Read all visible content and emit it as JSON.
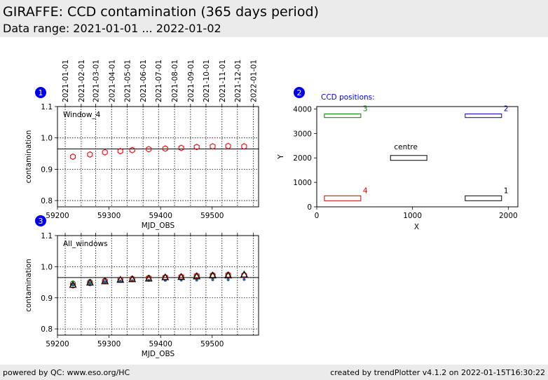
{
  "header": {
    "title": "GIRAFFE: CCD contamination (365 days period)",
    "subtitle": "Data range: 2021-01-01 ... 2022-01-02"
  },
  "footer": {
    "left": "powered by QC: www.eso.org/HC",
    "right": "created by trendPlotter v4.1.2 on 2022-01-15T16:30:22"
  },
  "date_ticks": [
    {
      "label": "2021-01-01",
      "mjd": 59215
    },
    {
      "label": "2021-02-01",
      "mjd": 59246
    },
    {
      "label": "2021-03-01",
      "mjd": 59274
    },
    {
      "label": "2021-04-01",
      "mjd": 59305
    },
    {
      "label": "2021-05-01",
      "mjd": 59335
    },
    {
      "label": "2021-06-01",
      "mjd": 59366
    },
    {
      "label": "2021-07-01",
      "mjd": 59396
    },
    {
      "label": "2021-08-01",
      "mjd": 59427
    },
    {
      "label": "2021-09-01",
      "mjd": 59458
    },
    {
      "label": "2021-10-01",
      "mjd": 59488
    },
    {
      "label": "2021-11-01",
      "mjd": 59519
    },
    {
      "label": "2021-12-01",
      "mjd": 59549
    },
    {
      "label": "2022-01-01",
      "mjd": 59580
    }
  ],
  "chart_data": [
    {
      "id": "1",
      "type": "scatter",
      "label": "Window_4",
      "xlabel": "MJD_OBS",
      "ylabel": "contamination",
      "xlim": [
        59200,
        59590
      ],
      "ylim": [
        0.78,
        1.1
      ],
      "xticks": [
        59200,
        59300,
        59400,
        59500
      ],
      "yticks": [
        0.8,
        0.9,
        1.0,
        1.1
      ],
      "reference_line": 0.965,
      "grid": true,
      "series": [
        {
          "marker": "hexagon",
          "color": "#ff0000",
          "x": [
            59230,
            59263,
            59292,
            59322,
            59345,
            59377,
            59409,
            59440,
            59470,
            59501,
            59531,
            59562
          ],
          "y": [
            0.94,
            0.947,
            0.954,
            0.958,
            0.961,
            0.964,
            0.966,
            0.968,
            0.971,
            0.973,
            0.974,
            0.973
          ]
        }
      ]
    },
    {
      "id": "2",
      "type": "scatter",
      "label": "CCD positions:",
      "xlabel": "X",
      "ylabel": "Y",
      "xlim": [
        0,
        2100
      ],
      "ylim": [
        0,
        4100
      ],
      "xticks": [
        0,
        1000,
        2000
      ],
      "yticks": [
        0,
        1000,
        2000,
        3000,
        4000
      ],
      "boxes": [
        {
          "name": "1",
          "color": "#000000",
          "x0": 1550,
          "x1": 1930,
          "y0": 250,
          "y1": 450
        },
        {
          "name": "2",
          "color": "#0000cc",
          "x0": 1550,
          "x1": 1930,
          "y0": 3650,
          "y1": 3800
        },
        {
          "name": "3",
          "color": "#008000",
          "x0": 80,
          "x1": 460,
          "y0": 3650,
          "y1": 3800
        },
        {
          "name": "4",
          "color": "#cc0000",
          "x0": 80,
          "x1": 460,
          "y0": 250,
          "y1": 450
        },
        {
          "name": "centre",
          "color": "#000000",
          "x0": 770,
          "x1": 1150,
          "y0": 1900,
          "y1": 2100
        }
      ]
    },
    {
      "id": "3",
      "type": "scatter",
      "label": "All_windows",
      "xlabel": "MJD_OBS",
      "ylabel": "contamination",
      "xlim": [
        59200,
        59590
      ],
      "ylim": [
        0.78,
        1.1
      ],
      "xticks": [
        59200,
        59300,
        59400,
        59500
      ],
      "yticks": [
        0.8,
        0.9,
        1.0,
        1.1
      ],
      "reference_line": 0.965,
      "grid": true,
      "x": [
        59230,
        59263,
        59292,
        59322,
        59345,
        59377,
        59409,
        59440,
        59470,
        59501,
        59531,
        59562
      ],
      "series": [
        {
          "marker": "dot",
          "color": "#1f5fbf",
          "y": [
            0.943,
            0.948,
            0.951,
            0.954,
            0.955,
            0.956,
            0.956,
            0.957,
            0.957,
            0.958,
            0.958,
            0.959
          ]
        },
        {
          "marker": "circle",
          "color": "#008000",
          "y": [
            0.946,
            0.951,
            0.955,
            0.958,
            0.961,
            0.963,
            0.965,
            0.967,
            0.968,
            0.97,
            0.971,
            0.972
          ]
        },
        {
          "marker": "hexagon",
          "color": "#ff0000",
          "y": [
            0.94,
            0.947,
            0.954,
            0.958,
            0.961,
            0.964,
            0.966,
            0.968,
            0.971,
            0.973,
            0.974,
            0.973
          ]
        },
        {
          "marker": "triangle",
          "color": "#000000",
          "y": [
            0.942,
            0.949,
            0.953,
            0.958,
            0.96,
            0.962,
            0.966,
            0.967,
            0.969,
            0.972,
            0.972,
            0.975
          ]
        }
      ]
    }
  ]
}
